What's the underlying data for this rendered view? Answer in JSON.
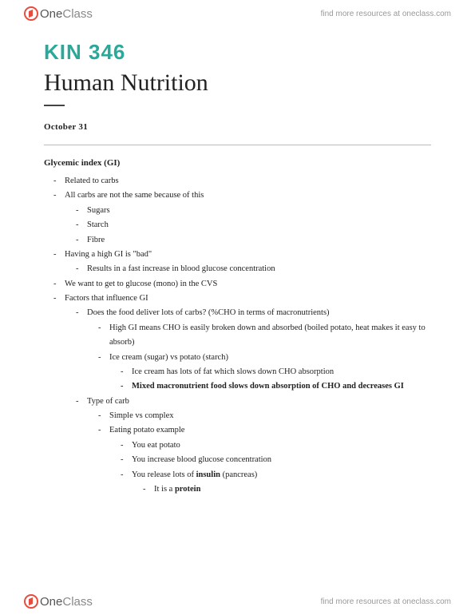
{
  "brand": {
    "name_one": "One",
    "name_class": "Class",
    "tagline": "find more resources at oneclass.com"
  },
  "doc": {
    "course": "KIN 346",
    "title": "Human Nutrition",
    "date": "October 31",
    "section": "Glycemic index (GI)"
  },
  "notes": {
    "i0": "Related to carbs",
    "i1": "All carbs are not the same because of this",
    "i1a": "Sugars",
    "i1b": "Starch",
    "i1c": "Fibre",
    "i2": "Having a high GI is \"bad\"",
    "i2a": "Results in a fast increase in blood glucose concentration",
    "i3": "We want to get to glucose (mono) in the CVS",
    "i4": "Factors that influence GI",
    "i4a": "Does the food deliver lots of carbs? (%CHO in terms of macronutrients)",
    "i4a1": "High GI means CHO is easily broken down and absorbed (boiled potato, heat makes it easy to absorb)",
    "i4a2": "Ice cream (sugar) vs potato (starch)",
    "i4a2a": "Ice cream has lots of fat which slows down CHO absorption",
    "i4a2b": "Mixed macronutrient food slows down absorption of CHO and decreases GI",
    "i4b": "Type of carb",
    "i4b1": "Simple vs complex",
    "i4b2": "Eating potato example",
    "i4b2a": "You eat potato",
    "i4b2b": "You increase blood glucose concentration",
    "i4b2c_pre": "You release lots of ",
    "i4b2c_bold": "insulin",
    "i4b2c_post": " (pancreas)",
    "i4b2c1_pre": "It is a ",
    "i4b2c1_bold": "protein"
  },
  "colors": {
    "accent": "#2aa89a",
    "logo": "#e74c3c",
    "text": "#222222",
    "muted": "#999999"
  }
}
